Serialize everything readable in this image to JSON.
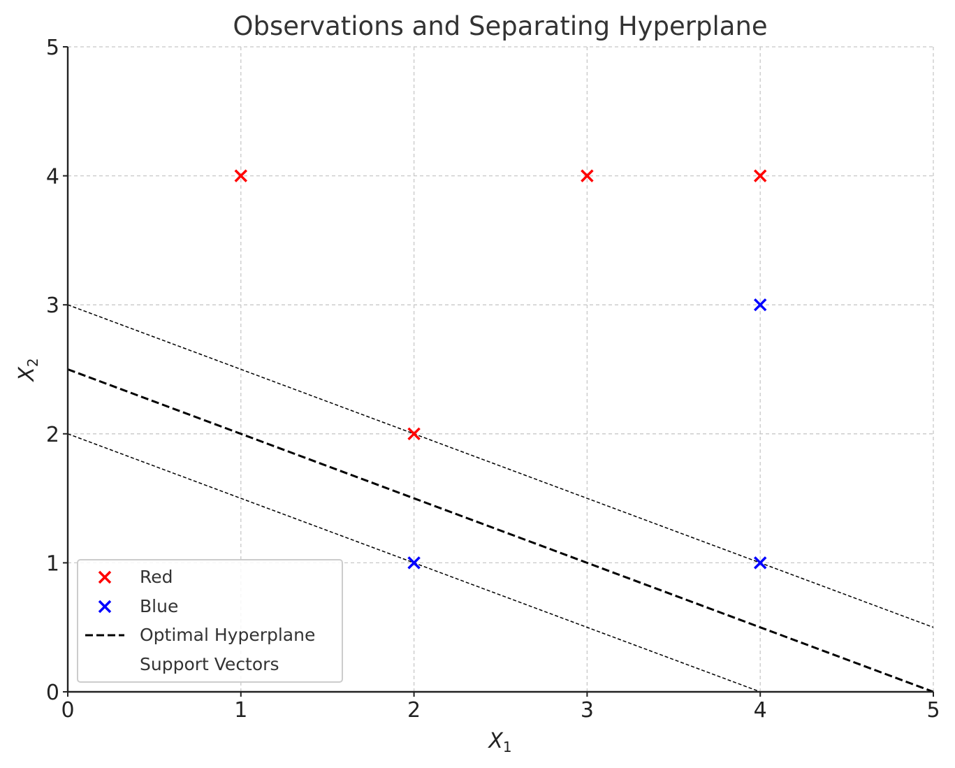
{
  "chart_data": {
    "type": "scatter",
    "title": "Observations and Separating Hyperplane",
    "xlabel": "X",
    "xlabel_sub": "1",
    "ylabel": "X",
    "ylabel_sub": "2",
    "xlim": [
      0,
      5
    ],
    "ylim": [
      0,
      5
    ],
    "xticks": [
      "0",
      "1",
      "2",
      "3",
      "4",
      "5"
    ],
    "yticks": [
      "0",
      "1",
      "2",
      "3",
      "4",
      "5"
    ],
    "grid": true,
    "legend_position": "lower-left",
    "series": [
      {
        "name": "Red",
        "marker": "x",
        "color": "#ff0000",
        "points": [
          [
            1,
            4
          ],
          [
            3,
            4
          ],
          [
            4,
            4
          ],
          [
            2,
            2
          ]
        ]
      },
      {
        "name": "Blue",
        "marker": "x",
        "color": "#0000ff",
        "points": [
          [
            4,
            3
          ],
          [
            2,
            1
          ],
          [
            4,
            1
          ]
        ]
      }
    ],
    "lines": [
      {
        "name": "Optimal Hyperplane",
        "style": "dashed",
        "color": "#000000",
        "points": [
          [
            0,
            2.5
          ],
          [
            5,
            0
          ]
        ]
      },
      {
        "name": "Support Vectors",
        "style": "dashed-thin",
        "color": "#000000",
        "points": [
          [
            0,
            3
          ],
          [
            5,
            0.5
          ]
        ]
      },
      {
        "name": "Support Vectors",
        "style": "dashed-thin",
        "color": "#000000",
        "points": [
          [
            0,
            2
          ],
          [
            4,
            0
          ]
        ]
      }
    ],
    "legend": [
      "Red",
      "Blue",
      "Optimal Hyperplane",
      "Support Vectors"
    ]
  }
}
